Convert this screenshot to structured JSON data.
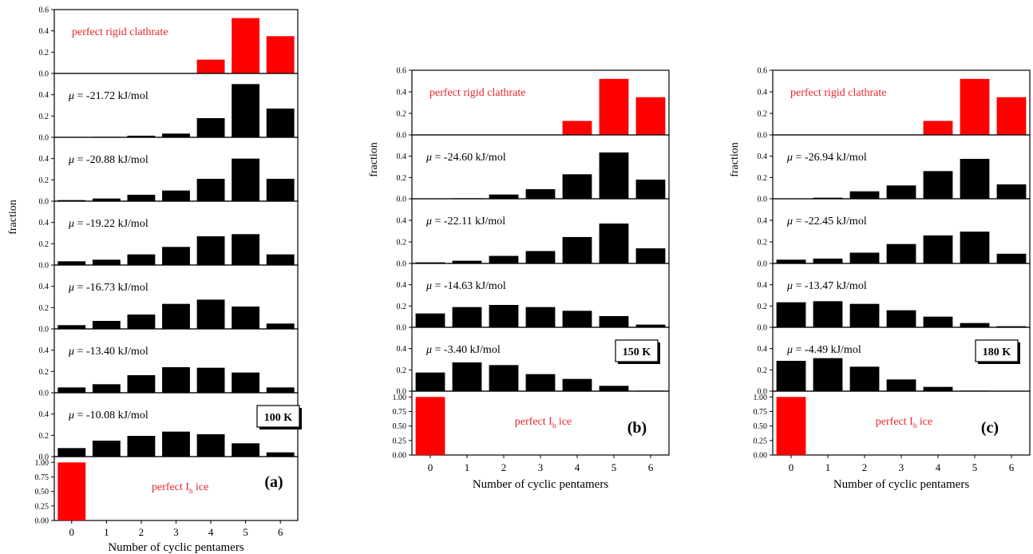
{
  "chart_data": [
    {
      "type": "bar",
      "id": "a",
      "panel_letter": "(a)",
      "temperature": "100 K",
      "xlabel": "Number of cyclic pentamers",
      "ylabel": "fraction",
      "categories": [
        "0",
        "1",
        "2",
        "3",
        "4",
        "5",
        "6"
      ],
      "colors": {
        "highlight": "#ff0000",
        "default": "#000000"
      },
      "series": [
        {
          "label": "perfect rigid clathrate",
          "highlight": true,
          "ylim": [
            0,
            0.6
          ],
          "yticks": [
            "0.0",
            "0.2",
            "0.4",
            "0.6"
          ],
          "values": [
            0,
            0,
            0,
            0,
            0.13,
            0.52,
            0.35
          ]
        },
        {
          "label_mu": "μ",
          "label_rest": " = -21.72 kJ/mol",
          "ylim": [
            0,
            0.6
          ],
          "yticks": [
            "0.0",
            "0.2",
            "0.4"
          ],
          "values": [
            0,
            0.005,
            0.015,
            0.035,
            0.18,
            0.5,
            0.27
          ]
        },
        {
          "label_mu": "μ",
          "label_rest": " = -20.88 kJ/mol",
          "ylim": [
            0,
            0.6
          ],
          "yticks": [
            "0.0",
            "0.2",
            "0.4"
          ],
          "values": [
            0.01,
            0.025,
            0.06,
            0.1,
            0.21,
            0.4,
            0.21
          ]
        },
        {
          "label_mu": "μ",
          "label_rest": " = -19.22 kJ/mol",
          "ylim": [
            0,
            0.6
          ],
          "yticks": [
            "0.0",
            "0.2",
            "0.4"
          ],
          "values": [
            0.035,
            0.05,
            0.1,
            0.17,
            0.27,
            0.29,
            0.1
          ]
        },
        {
          "label_mu": "μ",
          "label_rest": " = -16.73 kJ/mol",
          "ylim": [
            0,
            0.6
          ],
          "yticks": [
            "0.0",
            "0.2",
            "0.4"
          ],
          "values": [
            0.035,
            0.075,
            0.135,
            0.235,
            0.275,
            0.21,
            0.05
          ]
        },
        {
          "label_mu": "μ",
          "label_rest": " = -13.40 kJ/mol",
          "ylim": [
            0,
            0.6
          ],
          "yticks": [
            "0.0",
            "0.2",
            "0.4"
          ],
          "values": [
            0.05,
            0.08,
            0.165,
            0.24,
            0.235,
            0.19,
            0.05
          ]
        },
        {
          "label_mu": "μ",
          "label_rest": " = -10.08 kJ/mol",
          "ylim": [
            0,
            0.6
          ],
          "yticks": [
            "0.0",
            "0.2",
            "0.4"
          ],
          "values": [
            0.08,
            0.15,
            0.195,
            0.235,
            0.21,
            0.125,
            0.04
          ]
        },
        {
          "label": "perfect I",
          "label_sub": "h",
          "label_tail": " ice",
          "highlight": true,
          "ylim": [
            0,
            1.1
          ],
          "yticks": [
            "0.00",
            "0.25",
            "0.50",
            "0.75",
            "1.00"
          ],
          "values": [
            1,
            0,
            0,
            0,
            0,
            0,
            0
          ]
        }
      ]
    },
    {
      "type": "bar",
      "id": "b",
      "panel_letter": "(b)",
      "temperature": "150 K",
      "xlabel": "Number of cyclic pentamers",
      "ylabel": "fraction",
      "categories": [
        "0",
        "1",
        "2",
        "3",
        "4",
        "5",
        "6"
      ],
      "colors": {
        "highlight": "#ff0000",
        "default": "#000000"
      },
      "series": [
        {
          "label": "perfect rigid clathrate",
          "highlight": true,
          "ylim": [
            0,
            0.6
          ],
          "yticks": [
            "0.0",
            "0.2",
            "0.4",
            "0.6"
          ],
          "values": [
            0,
            0,
            0,
            0,
            0.13,
            0.52,
            0.35
          ]
        },
        {
          "label_mu": "μ",
          "label_rest": " = -24.60 kJ/mol",
          "ylim": [
            0,
            0.6
          ],
          "yticks": [
            "0.0",
            "0.2",
            "0.4"
          ],
          "values": [
            0,
            0.005,
            0.04,
            0.09,
            0.23,
            0.435,
            0.18
          ]
        },
        {
          "label_mu": "μ",
          "label_rest": " = -22.11 kJ/mol",
          "ylim": [
            0,
            0.6
          ],
          "yticks": [
            "0.0",
            "0.2",
            "0.4"
          ],
          "values": [
            0.01,
            0.025,
            0.07,
            0.115,
            0.245,
            0.37,
            0.14
          ]
        },
        {
          "label_mu": "μ",
          "label_rest": " = -14.63 kJ/mol",
          "ylim": [
            0,
            0.6
          ],
          "yticks": [
            "0.0",
            "0.2",
            "0.4"
          ],
          "values": [
            0.13,
            0.19,
            0.21,
            0.19,
            0.155,
            0.105,
            0.025
          ]
        },
        {
          "label_mu": "μ",
          "label_rest": " = -3.40 kJ/mol",
          "ylim": [
            0,
            0.6
          ],
          "yticks": [
            "0.0",
            "0.2",
            "0.4"
          ],
          "values": [
            0.175,
            0.27,
            0.245,
            0.16,
            0.115,
            0.05,
            0.005
          ]
        },
        {
          "label": "perfect I",
          "label_sub": "h",
          "label_tail": " ice",
          "highlight": true,
          "ylim": [
            0,
            1.1
          ],
          "yticks": [
            "0.00",
            "0.25",
            "0.50",
            "0.75",
            "1.00"
          ],
          "values": [
            1,
            0,
            0,
            0,
            0,
            0,
            0
          ]
        }
      ]
    },
    {
      "type": "bar",
      "id": "c",
      "panel_letter": "(c)",
      "temperature": "180 K",
      "xlabel": "Number of cyclic pentamers",
      "ylabel": "fraction",
      "categories": [
        "0",
        "1",
        "2",
        "3",
        "4",
        "5",
        "6"
      ],
      "colors": {
        "highlight": "#ff0000",
        "default": "#000000"
      },
      "series": [
        {
          "label": "perfect rigid clathrate",
          "highlight": true,
          "ylim": [
            0,
            0.6
          ],
          "yticks": [
            "0.0",
            "0.2",
            "0.4",
            "0.6"
          ],
          "values": [
            0,
            0,
            0,
            0,
            0.13,
            0.52,
            0.35
          ]
        },
        {
          "label_mu": "μ",
          "label_rest": " = -26.94 kJ/mol",
          "ylim": [
            0,
            0.6
          ],
          "yticks": [
            "0.0",
            "0.2",
            "0.4"
          ],
          "values": [
            0,
            0.01,
            0.07,
            0.125,
            0.26,
            0.375,
            0.135
          ]
        },
        {
          "label_mu": "μ",
          "label_rest": " = -22.45 kJ/mol",
          "ylim": [
            0,
            0.6
          ],
          "yticks": [
            "0.0",
            "0.2",
            "0.4"
          ],
          "values": [
            0.035,
            0.045,
            0.1,
            0.18,
            0.26,
            0.295,
            0.09
          ]
        },
        {
          "label_mu": "μ",
          "label_rest": " = -13.47 kJ/mol",
          "ylim": [
            0,
            0.6
          ],
          "yticks": [
            "0.0",
            "0.2",
            "0.4"
          ],
          "values": [
            0.235,
            0.245,
            0.22,
            0.16,
            0.1,
            0.04,
            0.01
          ]
        },
        {
          "label_mu": "μ",
          "label_rest": " = -4.49 kJ/mol",
          "ylim": [
            0,
            0.6
          ],
          "yticks": [
            "0.0",
            "0.2",
            "0.4"
          ],
          "values": [
            0.285,
            0.31,
            0.23,
            0.11,
            0.04,
            0.005,
            0
          ]
        },
        {
          "label": "perfect I",
          "label_sub": "h",
          "label_tail": " ice",
          "highlight": true,
          "ylim": [
            0,
            1.1
          ],
          "yticks": [
            "0.00",
            "0.25",
            "0.50",
            "0.75",
            "1.00"
          ],
          "values": [
            1,
            0,
            0,
            0,
            0,
            0,
            0
          ]
        }
      ]
    }
  ]
}
